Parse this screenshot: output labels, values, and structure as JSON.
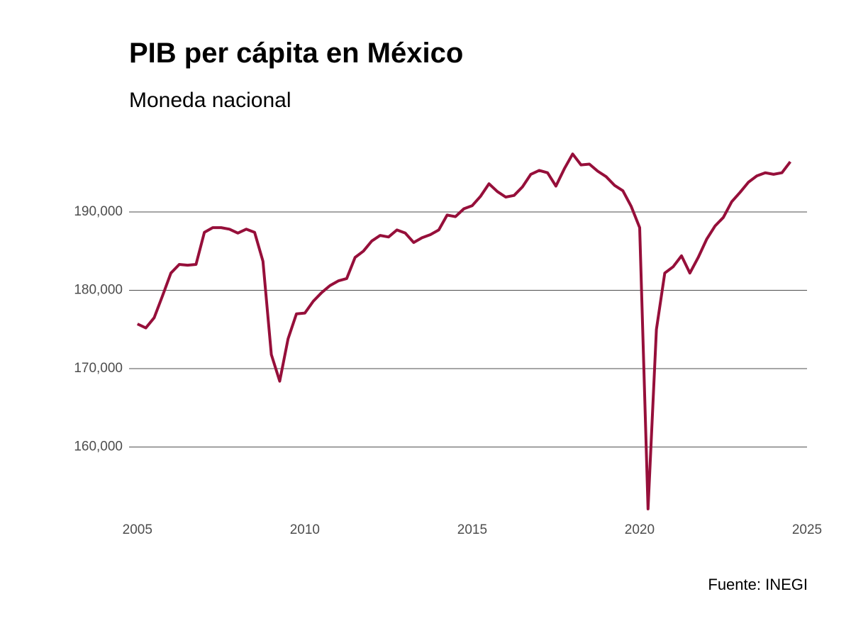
{
  "header": {
    "title": "PIB per cápita en México",
    "subtitle": "Moneda nacional"
  },
  "footer": {
    "source": "Fuente: INEGI"
  },
  "colors": {
    "line": "#960f3a",
    "grid": "#4d4d4d",
    "tick_text": "#4d4d4d",
    "background": "#ffffff"
  },
  "chart_data": {
    "type": "line",
    "title": "PIB per cápita en México",
    "subtitle": "Moneda nacional",
    "xlabel": "",
    "ylabel": "",
    "grid": "horizontal",
    "xlim": [
      2004.75,
      2025
    ],
    "ylim": [
      152000,
      198500
    ],
    "x_ticks": [
      2005,
      2010,
      2015,
      2020,
      2025
    ],
    "x_tick_labels": [
      "2005",
      "2010",
      "2015",
      "2020",
      "2025"
    ],
    "y_ticks": [
      160000,
      170000,
      180000,
      190000
    ],
    "y_tick_labels": [
      "160,000",
      "170,000",
      "180,000",
      "190,000"
    ],
    "series": [
      {
        "x": [
          2005.0,
          2005.25,
          2005.5,
          2005.75,
          2006.0,
          2006.25,
          2006.5,
          2006.75,
          2007.0,
          2007.25,
          2007.5,
          2007.75,
          2008.0,
          2008.25,
          2008.5,
          2008.75,
          2009.0,
          2009.25,
          2009.5,
          2009.75,
          2010.0,
          2010.25,
          2010.5,
          2010.75,
          2011.0,
          2011.25,
          2011.5,
          2011.75,
          2012.0,
          2012.25,
          2012.5,
          2012.75,
          2013.0,
          2013.25,
          2013.5,
          2013.75,
          2014.0,
          2014.25,
          2014.5,
          2014.75,
          2015.0,
          2015.25,
          2015.5,
          2015.75,
          2016.0,
          2016.25,
          2016.5,
          2016.75,
          2017.0,
          2017.25,
          2017.5,
          2017.75,
          2018.0,
          2018.25,
          2018.5,
          2018.75,
          2019.0,
          2019.25,
          2019.5,
          2019.75,
          2020.0,
          2020.25,
          2020.5,
          2020.75,
          2021.0,
          2021.25,
          2021.5,
          2021.75,
          2022.0,
          2022.25,
          2022.5,
          2022.75,
          2023.0,
          2023.25,
          2023.5,
          2023.75,
          2024.0,
          2024.25,
          2024.5
        ],
        "values": [
          175700,
          175200,
          176500,
          179300,
          182200,
          183300,
          183200,
          183300,
          187400,
          188000,
          188000,
          187800,
          187300,
          187800,
          187400,
          183700,
          171800,
          168400,
          173800,
          177000,
          177100,
          178600,
          179700,
          180600,
          181200,
          181500,
          184200,
          185000,
          186300,
          187000,
          186800,
          187700,
          187300,
          186100,
          186700,
          187100,
          187700,
          189600,
          189400,
          190400,
          190800,
          192000,
          193600,
          192600,
          191900,
          192100,
          193200,
          194800,
          195300,
          195000,
          193300,
          195500,
          197400,
          196000,
          196100,
          195200,
          194500,
          193400,
          192700,
          190700,
          188000,
          152100,
          175000,
          182200,
          183000,
          184400,
          182200,
          184200,
          186500,
          188200,
          189300,
          191300,
          192500,
          193800,
          194600,
          195000,
          194800,
          195000,
          196400
        ]
      }
    ]
  }
}
